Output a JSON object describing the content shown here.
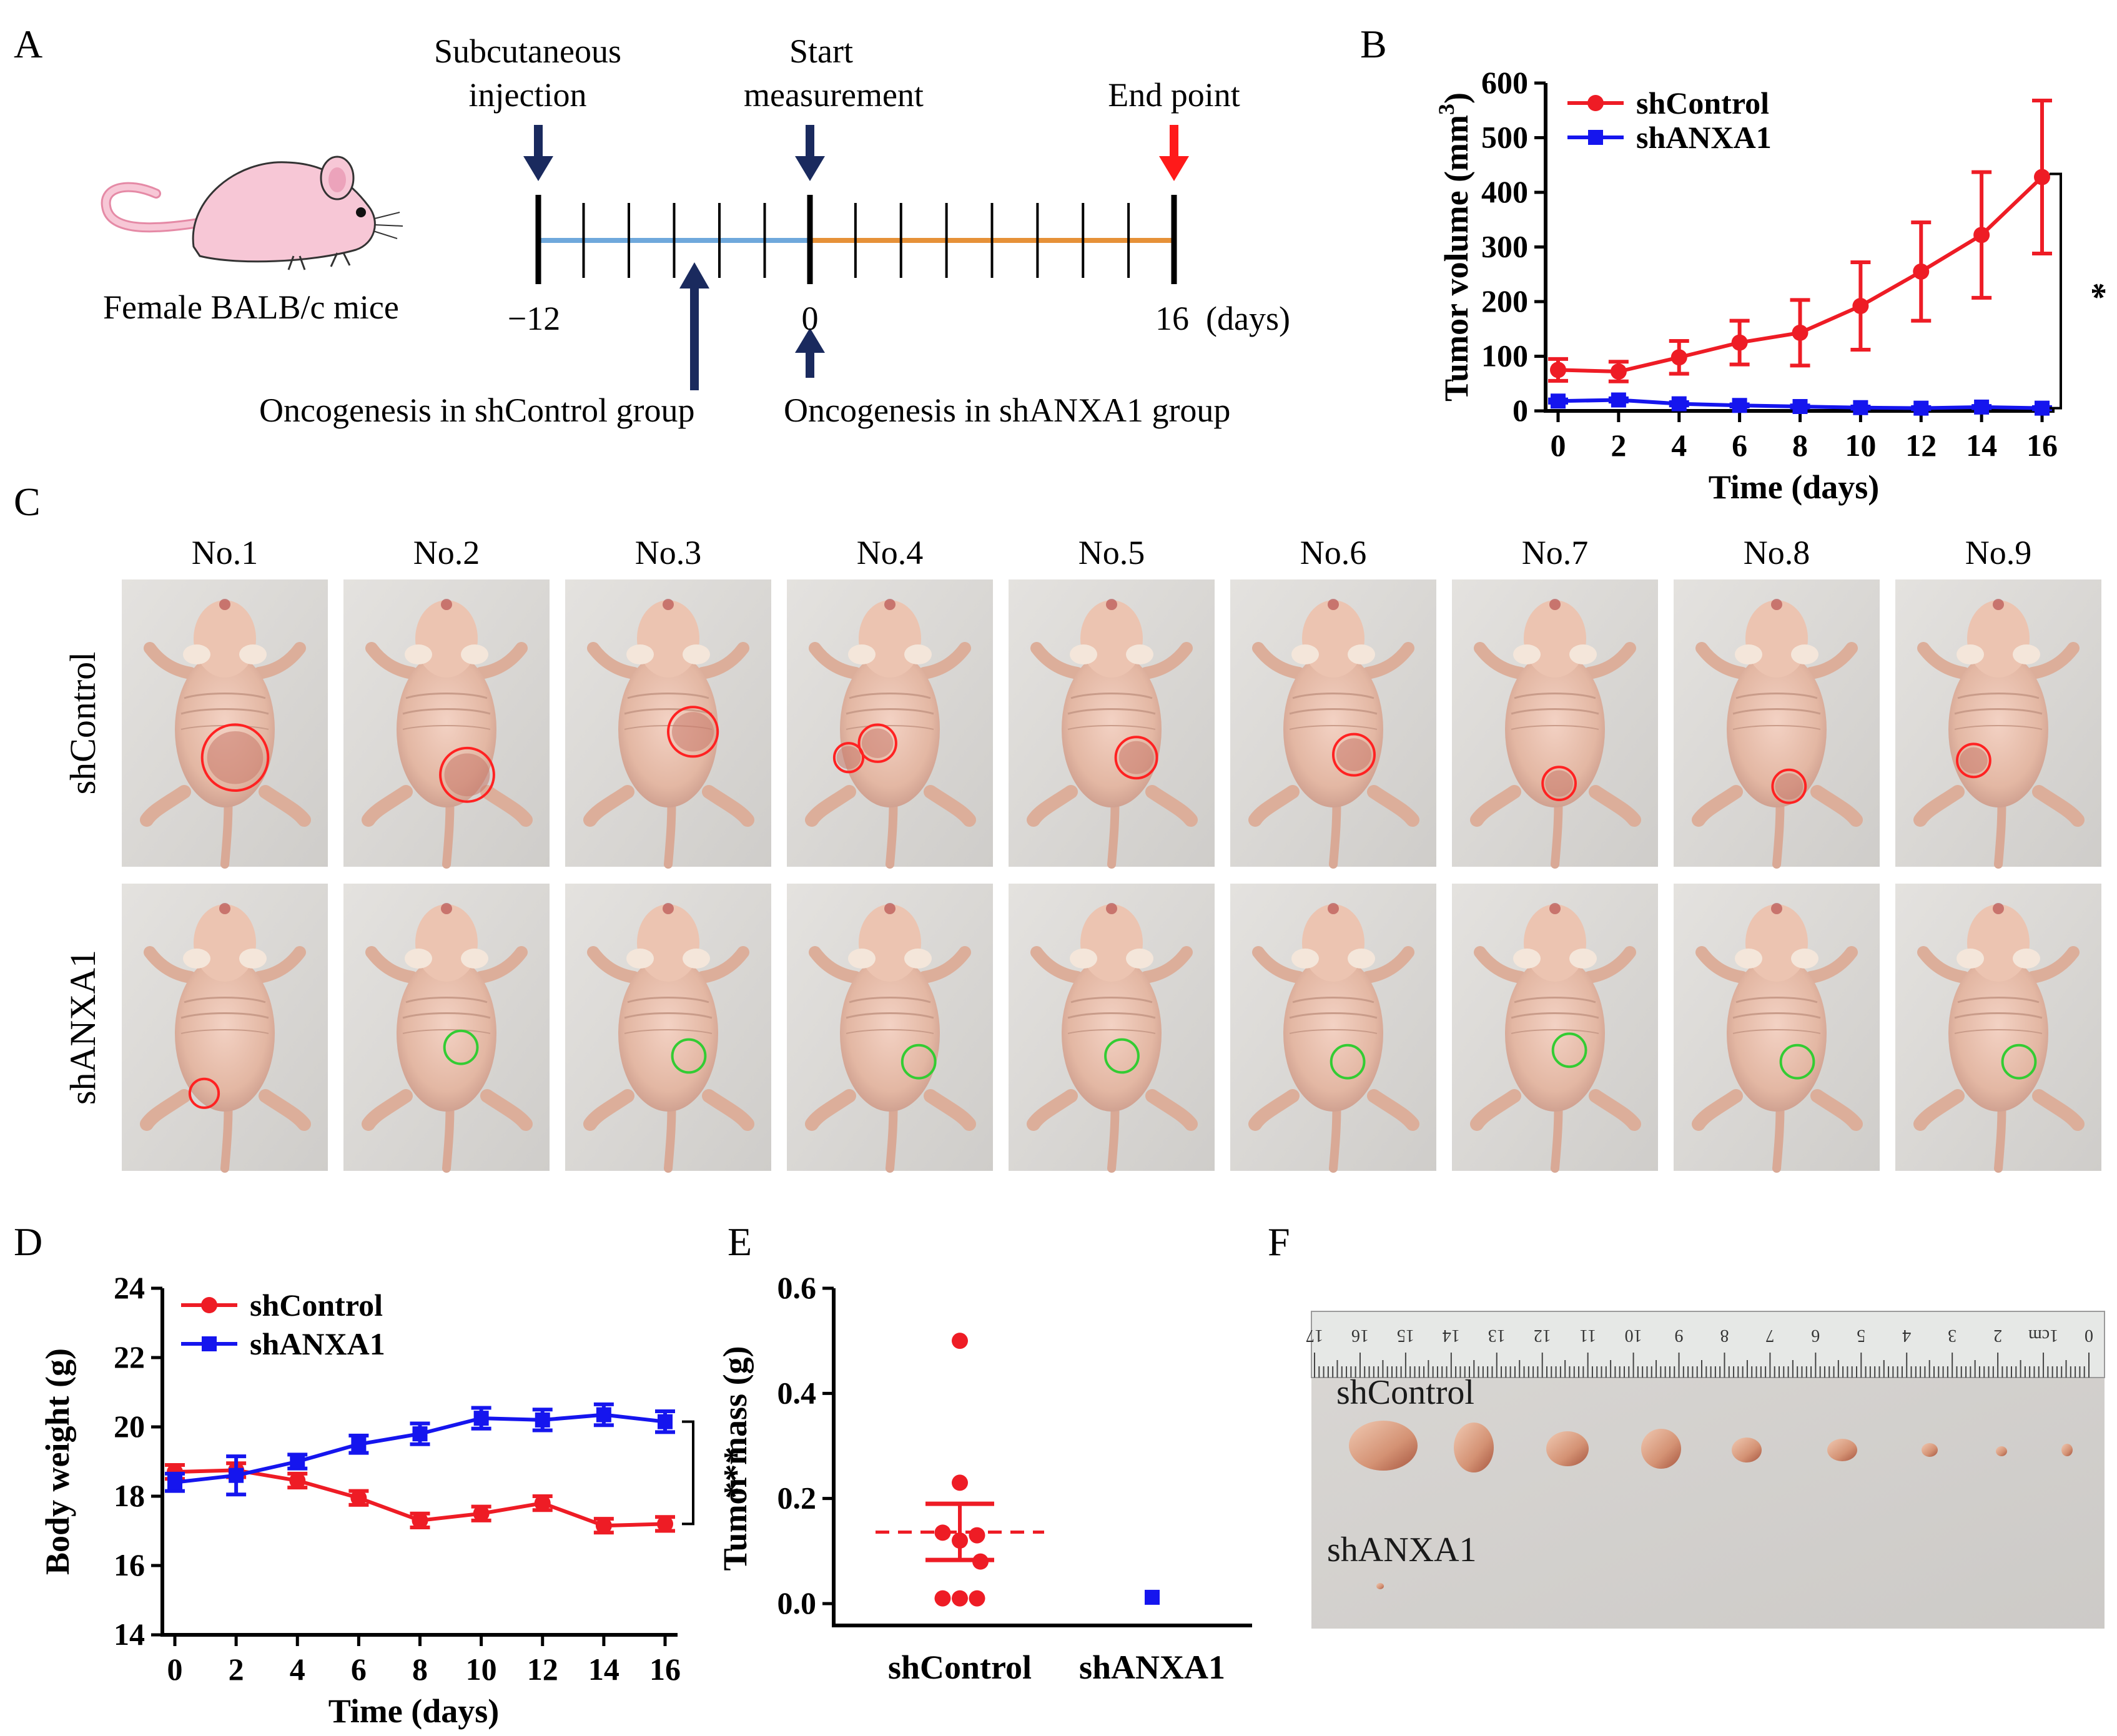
{
  "panels": {
    "A": "A",
    "B": "B",
    "C": "C",
    "D": "D",
    "E": "E",
    "F": "F"
  },
  "panelA": {
    "mouse_label": "Female BALB/c mice",
    "injection_line1": "Subcutaneous",
    "injection_line2": "injection",
    "start_line1": "Start",
    "start_line2": "measurement",
    "end_label": "End point",
    "tick_minus12": "−12",
    "tick_0": "0",
    "tick_16": "16  (days)",
    "onco_control": "Oncogenesis in shControl group",
    "onco_anxa1": "Oncogenesis in shANXA1 group",
    "colors": {
      "pre_line": "#6fa8dc",
      "post_line": "#e69138",
      "arrow_dark": "#1a2a5e",
      "arrow_red": "#ff1a1a",
      "mouse": "#f7c7d6"
    }
  },
  "panelC": {
    "columns": [
      "No.1",
      "No.2",
      "No.3",
      "No.4",
      "No.5",
      "No.6",
      "No.7",
      "No.8",
      "No.9"
    ],
    "rows": [
      "shControl",
      "shANXA1"
    ]
  },
  "panelF": {
    "ruler_numbers": [
      "17",
      "16",
      "15",
      "14",
      "13",
      "12",
      "11",
      "10",
      "9",
      "8",
      "7",
      "6",
      "5",
      "4",
      "3",
      "2",
      "1cm",
      "0"
    ],
    "label_control": "shControl",
    "label_anxa1": "shANXA1"
  },
  "chart_data": [
    {
      "id": "B",
      "type": "line",
      "ylabel": "Tumor volume (mm3)",
      "xlabel": "Time (days)",
      "x": [
        0,
        2,
        4,
        6,
        8,
        10,
        12,
        14,
        16
      ],
      "xlim": [
        0,
        16
      ],
      "ylim": [
        0,
        600
      ],
      "yticks": [
        0,
        100,
        200,
        300,
        400,
        500,
        600
      ],
      "xticks": [
        0,
        2,
        4,
        6,
        8,
        10,
        12,
        14,
        16
      ],
      "legend": "top-left",
      "significance": "*",
      "series": [
        {
          "name": "shControl",
          "color": "#ee1c25",
          "marker": "circle",
          "values": [
            75,
            72,
            98,
            125,
            143,
            192,
            255,
            322,
            428
          ],
          "errors": [
            20,
            18,
            30,
            40,
            60,
            80,
            90,
            115,
            140
          ]
        },
        {
          "name": "shANXA1",
          "color": "#1515ee",
          "marker": "square",
          "values": [
            18,
            20,
            13,
            10,
            8,
            6,
            5,
            7,
            5
          ],
          "errors": [
            3,
            3,
            3,
            2,
            2,
            2,
            2,
            2,
            2
          ]
        }
      ]
    },
    {
      "id": "D",
      "type": "line",
      "ylabel": "Body weight (g)",
      "xlabel": "Time (days)",
      "x": [
        0,
        2,
        4,
        6,
        8,
        10,
        12,
        14,
        16
      ],
      "xlim": [
        0,
        16
      ],
      "ylim": [
        14,
        24
      ],
      "yticks": [
        14,
        16,
        18,
        20,
        22,
        24
      ],
      "xticks": [
        0,
        2,
        4,
        6,
        8,
        10,
        12,
        14,
        16
      ],
      "legend": "top-left",
      "significance": "***",
      "series": [
        {
          "name": "shControl",
          "color": "#ee1c25",
          "marker": "circle",
          "values": [
            18.7,
            18.75,
            18.45,
            17.95,
            17.3,
            17.5,
            17.8,
            17.15,
            17.2
          ],
          "errors": [
            0.2,
            0.2,
            0.2,
            0.2,
            0.2,
            0.2,
            0.2,
            0.2,
            0.2
          ]
        },
        {
          "name": "shANXA1",
          "color": "#1515ee",
          "marker": "square",
          "values": [
            18.4,
            18.6,
            19.0,
            19.5,
            19.8,
            20.25,
            20.2,
            20.35,
            20.15
          ],
          "errors": [
            0.25,
            0.55,
            0.2,
            0.25,
            0.3,
            0.3,
            0.3,
            0.3,
            0.3
          ]
        }
      ]
    },
    {
      "id": "E",
      "type": "scatter",
      "ylabel": "Tumor mass (g)",
      "categories": [
        "shControl",
        "shANXA1"
      ],
      "ylim": [
        0,
        0.6
      ],
      "yticks": [
        "0.0",
        "0.2",
        "0.4",
        "0.6"
      ],
      "groups": [
        {
          "name": "shControl",
          "color": "#ee1c25",
          "marker": "circle",
          "points": [
            {
              "y": 0.5,
              "dx": 0
            },
            {
              "y": 0.23,
              "dx": 0
            },
            {
              "y": 0.135,
              "dx": -0.5
            },
            {
              "y": 0.13,
              "dx": 0.5
            },
            {
              "y": 0.12,
              "dx": 0
            },
            {
              "y": 0.08,
              "dx": 0.6
            },
            {
              "y": 0.01,
              "dx": -0.5
            },
            {
              "y": 0.01,
              "dx": 0
            },
            {
              "y": 0.01,
              "dx": 0.5
            }
          ],
          "mean": 0.136,
          "sem_low": 0.083,
          "sem_high": 0.19
        },
        {
          "name": "shANXA1",
          "color": "#1515ee",
          "marker": "square",
          "points": [
            {
              "y": 0.012,
              "dx": 0
            }
          ]
        }
      ]
    }
  ]
}
